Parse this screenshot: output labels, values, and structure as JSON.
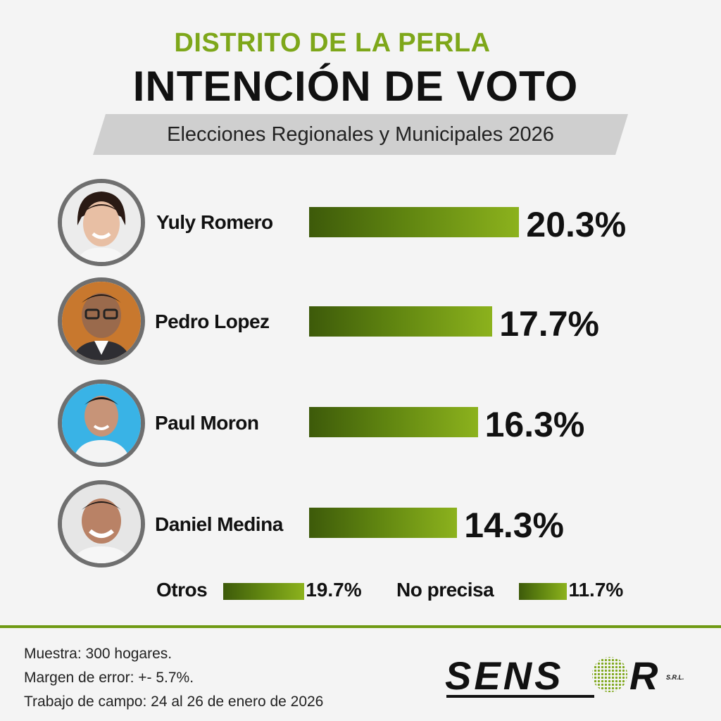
{
  "header": {
    "kicker": "DISTRITO DE LA PERLA",
    "title": "INTENCIÓN DE VOTO",
    "subtitle": "Elecciones Regionales y Municipales 2026"
  },
  "chart_data": {
    "type": "bar",
    "title": "INTENCIÓN DE VOTO",
    "subtitle": "Elecciones Regionales y Municipales 2026",
    "categories": [
      "Yuly Romero",
      "Pedro Lopez",
      "Paul Moron",
      "Daniel Medina",
      "Otros",
      "No precisa"
    ],
    "values": [
      20.3,
      17.7,
      16.3,
      14.3,
      19.7,
      11.7
    ],
    "labels": [
      "20.3%",
      "17.7%",
      "16.3%",
      "14.3%",
      "19.7%",
      "11.7%"
    ],
    "unit": "%"
  },
  "colors": {
    "accent": "#7ea71a",
    "bar_dark": "#3d5a0a",
    "bar_light": "#8cb21d",
    "ribbon": "#cfcfcf"
  },
  "footer": {
    "muestra": "Muestra: 300 hogares.",
    "margen": "Margen de error: +- 5.7%.",
    "campo": "Trabajo de campo: 24 al 26 de enero de 2026"
  },
  "logo": {
    "name": "SENSOR",
    "suffix": "S.R.L."
  }
}
